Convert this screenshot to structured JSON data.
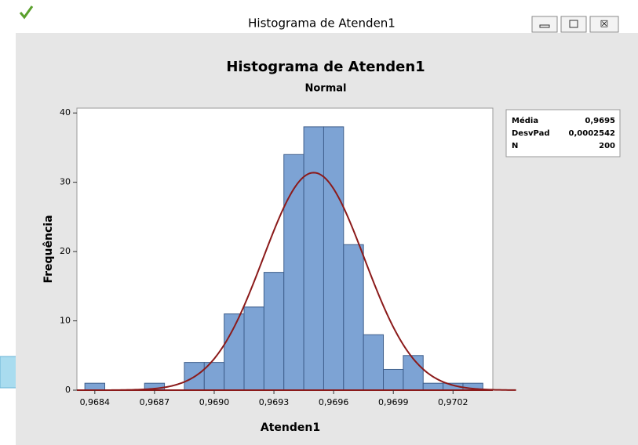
{
  "window": {
    "title": "Histograma de Atenden1"
  },
  "chart_data": {
    "type": "histogram",
    "title": "Histograma de Atenden1",
    "subtitle": "Normal",
    "xlabel": "Atenden1",
    "ylabel": "Frequência",
    "bins": [
      0.96835,
      0.96845,
      0.96855,
      0.96865,
      0.96875,
      0.96885,
      0.96895,
      0.96905,
      0.96915,
      0.96925,
      0.96935,
      0.96945,
      0.96955,
      0.96965,
      0.96975,
      0.96985,
      0.96995,
      0.97005,
      0.97015,
      0.97025,
      0.97035
    ],
    "counts": [
      1,
      0,
      0,
      1,
      0,
      4,
      4,
      11,
      12,
      17,
      34,
      38,
      38,
      21,
      8,
      3,
      5,
      1,
      1,
      1
    ],
    "color": "#7da3d4",
    "fit_color": "#8b1a1a",
    "xlim": [
      0.96831,
      0.9704
    ],
    "ylim": [
      0,
      40.7
    ],
    "xticks": [
      {
        "value": 0.9684,
        "label": "0,9684"
      },
      {
        "value": 0.9687,
        "label": "0,9687"
      },
      {
        "value": 0.969,
        "label": "0,9690"
      },
      {
        "value": 0.9693,
        "label": "0,9693"
      },
      {
        "value": 0.9696,
        "label": "0,9696"
      },
      {
        "value": 0.9699,
        "label": "0,9699"
      },
      {
        "value": 0.9702,
        "label": "0,9702"
      }
    ],
    "yticks": [
      0,
      10,
      20,
      30,
      40
    ],
    "stats": [
      {
        "name": "Média",
        "value": 0.9695,
        "label": "0,9695"
      },
      {
        "name": "DesvPad",
        "value": 0.0002542,
        "label": "0,0002542"
      },
      {
        "name": "N",
        "value": 200,
        "label": "200"
      }
    ]
  }
}
